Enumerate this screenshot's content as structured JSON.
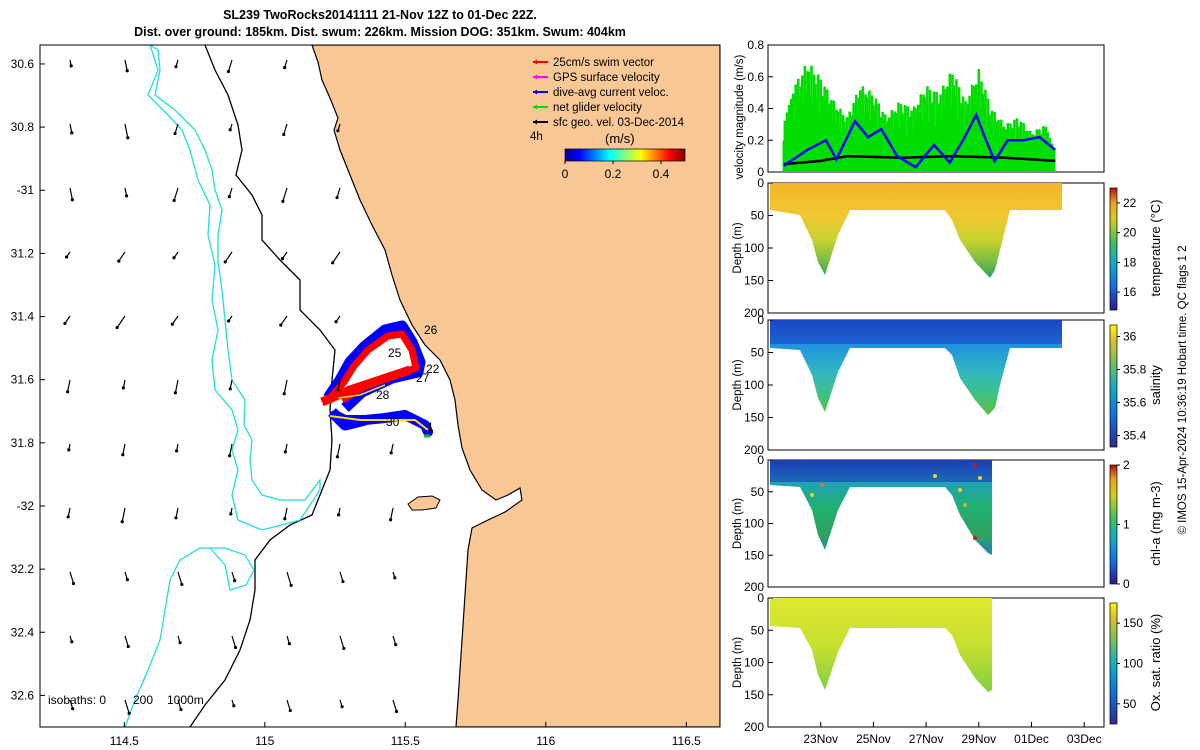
{
  "header": {
    "line1": "SL239 TwoRocks20141111 21-Nov 12Z to 01-Dec 22Z.",
    "line2": "Dist. over ground: 185km. Dist. swum: 226km. Mission DOG: 351km. Swum: 404km"
  },
  "map": {
    "lat_labels": [
      "30.6",
      "30.8",
      "-31",
      "31.2",
      "31.4",
      "31.6",
      "31.8",
      "-32",
      "32.2",
      "32.4",
      "32.6"
    ],
    "lat_values": [
      -30.6,
      -30.8,
      -31.0,
      -31.2,
      -31.4,
      -31.6,
      -31.8,
      -32.0,
      -32.2,
      -32.4,
      -32.6
    ],
    "lon_labels": [
      "114.5",
      "115",
      "115.5",
      "116",
      "116.5"
    ],
    "lon_values": [
      114.5,
      115.0,
      115.5,
      116.0,
      116.5
    ],
    "lon_range": [
      114.2,
      116.62
    ],
    "lat_range": [
      -30.54,
      -32.7
    ],
    "track_day_labels": [
      "26",
      "25",
      "22",
      "27",
      "28",
      "30",
      "1"
    ],
    "isobaths_label": "isobaths: 0",
    "isobath_200": "200",
    "isobath_1000": "1000m",
    "legend": [
      {
        "label": "25cm/s swim vector",
        "color": "#ff0000"
      },
      {
        "label": "GPS surface velocity",
        "color": "#ff00ff"
      },
      {
        "label": "dive-avg current veloc.",
        "color": "#0000ff"
      },
      {
        "label": "net glider velocity",
        "color": "#00dd00"
      },
      {
        "label": "sfc geo. vel. 03-Dec-2014",
        "color": "#000000"
      }
    ],
    "legend_extra": "4h",
    "colorbar": {
      "label": "(m/s)",
      "ticks": [
        "0",
        "0.2",
        "0.4"
      ],
      "tick_values": [
        0,
        0.2,
        0.4
      ],
      "range": [
        0,
        0.5
      ]
    },
    "colors": {
      "land": "#f9c896",
      "coast": "#000000",
      "isobath200": "#000000",
      "isobath1000": "#22dde0"
    }
  },
  "velocity_panel": {
    "ylabel": "velocity magnitude (m/s)",
    "yticks": [
      "0",
      "0.2",
      "0.4",
      "0.6",
      "0.8"
    ],
    "ytick_values": [
      0,
      0.2,
      0.4,
      0.6,
      0.8
    ]
  },
  "section_panels": [
    {
      "ylabel": "Depth (m)",
      "cbar_label": "temperature (°C)",
      "cbar_ticks": [
        "22",
        "20",
        "18",
        "16"
      ],
      "cbar_range": [
        14.8,
        23.0
      ],
      "cbar_tick_values": [
        22,
        20,
        18,
        16
      ]
    },
    {
      "ylabel": "Depth (m)",
      "cbar_label": "salinity",
      "cbar_ticks": [
        "36",
        "35.8",
        "35.6",
        "35.4"
      ],
      "cbar_range": [
        35.33,
        36.07
      ],
      "cbar_tick_values": [
        36,
        35.8,
        35.6,
        35.4
      ]
    },
    {
      "ylabel": "Depth (m)",
      "cbar_label": "chl-a (mg m-3)",
      "cbar_ticks": [
        "2",
        "1",
        "0"
      ],
      "cbar_range": [
        0,
        2
      ],
      "cbar_tick_values": [
        2,
        1,
        0
      ]
    },
    {
      "ylabel": "Depth (m)",
      "cbar_label": "Ox. sat. ratio (%)",
      "cbar_ticks": [
        "150",
        "100",
        "50"
      ],
      "cbar_range": [
        25,
        175
      ],
      "cbar_tick_values": [
        150,
        100,
        50
      ]
    }
  ],
  "depth_ticks": [
    "0",
    "50",
    "100",
    "150",
    "200"
  ],
  "depth_tick_values": [
    0,
    50,
    100,
    150,
    200
  ],
  "time_ticks": [
    "23Nov",
    "25Nov",
    "27Nov",
    "29Nov",
    "01Dec",
    "03Dec"
  ],
  "time_tick_days": [
    23,
    25,
    27,
    29,
    31,
    33
  ],
  "credit": "© IMOS 15-Apr-2024 10:36:19 Hobart time. QC flags 1  2",
  "chart_data": [
    {
      "type": "line",
      "title": "velocity magnitude",
      "ylabel": "velocity magnitude (m/s)",
      "ylim": [
        0,
        0.8
      ],
      "x_unit": "day of Nov-2014",
      "series": [
        {
          "name": "dive-avg current veloc.",
          "color": "#0000ff",
          "x": [
            21.6,
            22.5,
            23.2,
            23.6,
            24.3,
            24.8,
            25.3,
            25.9,
            26.6,
            27.3,
            27.9,
            28.4,
            28.9,
            29.2,
            29.6,
            30.1,
            30.7,
            31.3,
            31.9
          ],
          "values": [
            0.04,
            0.14,
            0.2,
            0.08,
            0.32,
            0.22,
            0.27,
            0.1,
            0.03,
            0.17,
            0.06,
            0.2,
            0.36,
            0.23,
            0.07,
            0.2,
            0.2,
            0.22,
            0.14
          ]
        },
        {
          "name": "sfc geo vel",
          "color": "#000000",
          "x": [
            21.6,
            23.0,
            24.0,
            26.0,
            28.0,
            30.0,
            31.9
          ],
          "values": [
            0.05,
            0.07,
            0.1,
            0.09,
            0.1,
            0.09,
            0.07
          ]
        },
        {
          "name": "net glider velocity",
          "color": "#00dd00",
          "x": [
            21.6,
            22.0,
            22.5,
            23.0,
            23.5,
            24.0,
            24.5,
            25.0,
            25.5,
            26.0,
            26.5,
            27.0,
            27.5,
            28.0,
            28.5,
            29.0,
            29.5,
            30.0,
            30.5,
            31.0,
            31.5,
            31.9
          ],
          "values": [
            0.3,
            0.55,
            0.7,
            0.6,
            0.45,
            0.35,
            0.55,
            0.5,
            0.35,
            0.45,
            0.4,
            0.55,
            0.5,
            0.65,
            0.45,
            0.65,
            0.4,
            0.3,
            0.35,
            0.25,
            0.3,
            0.15
          ]
        }
      ]
    }
  ]
}
